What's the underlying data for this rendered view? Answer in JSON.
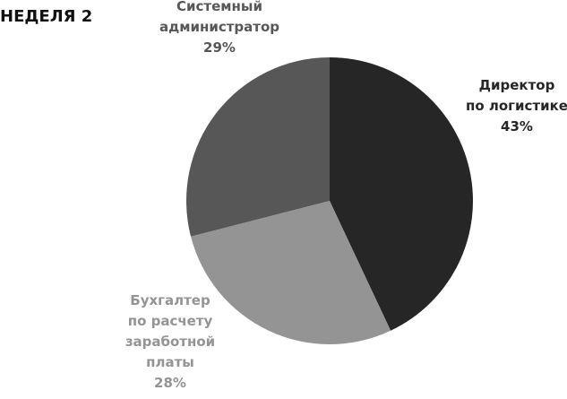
{
  "chart_data": {
    "type": "pie",
    "title": "НЕДЕЛЯ 2",
    "categories": [
      "Директор\nпо логистике",
      "Бухгалтер\nпо расчету\nзаработной\nплаты",
      "Системный\nадминистратор"
    ],
    "values": [
      43,
      28,
      29
    ],
    "value_labels": [
      "43%",
      "28%",
      "29%"
    ],
    "colors": [
      "#262626",
      "#949494",
      "#575757"
    ]
  }
}
